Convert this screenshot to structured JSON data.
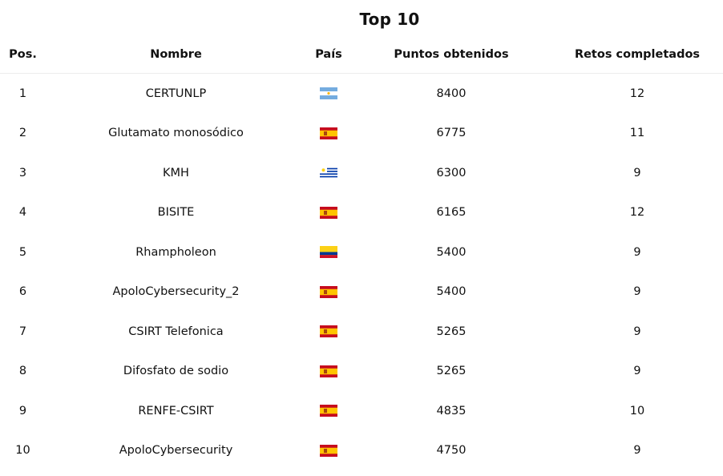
{
  "title": "Top 10",
  "columns": {
    "pos": "Pos.",
    "name": "Nombre",
    "country": "País",
    "points": "Puntos obtenidos",
    "challenges": "Retos completados"
  },
  "rows": [
    {
      "pos": "1",
      "name": "CERTUNLP",
      "country_flag": "argentina-flag-icon",
      "points": "8400",
      "challenges": "12"
    },
    {
      "pos": "2",
      "name": "Glutamato monosódico",
      "country_flag": "spain-flag-icon",
      "points": "6775",
      "challenges": "11"
    },
    {
      "pos": "3",
      "name": "KMH",
      "country_flag": "uruguay-flag-icon",
      "points": "6300",
      "challenges": "9"
    },
    {
      "pos": "4",
      "name": "BISITE",
      "country_flag": "spain-flag-icon",
      "points": "6165",
      "challenges": "12"
    },
    {
      "pos": "5",
      "name": "Rhampholeon",
      "country_flag": "colombia-flag-icon",
      "points": "5400",
      "challenges": "9"
    },
    {
      "pos": "6",
      "name": "ApoloCybersecurity_2",
      "country_flag": "spain-flag-icon",
      "points": "5400",
      "challenges": "9"
    },
    {
      "pos": "7",
      "name": "CSIRT Telefonica",
      "country_flag": "spain-flag-icon",
      "points": "5265",
      "challenges": "9"
    },
    {
      "pos": "8",
      "name": "Difosfato de sodio",
      "country_flag": "spain-flag-icon",
      "points": "5265",
      "challenges": "9"
    },
    {
      "pos": "9",
      "name": "RENFE-CSIRT",
      "country_flag": "spain-flag-icon",
      "points": "4835",
      "challenges": "10"
    },
    {
      "pos": "10",
      "name": "ApoloCybersecurity",
      "country_flag": "spain-flag-icon",
      "points": "4750",
      "challenges": "9"
    }
  ]
}
